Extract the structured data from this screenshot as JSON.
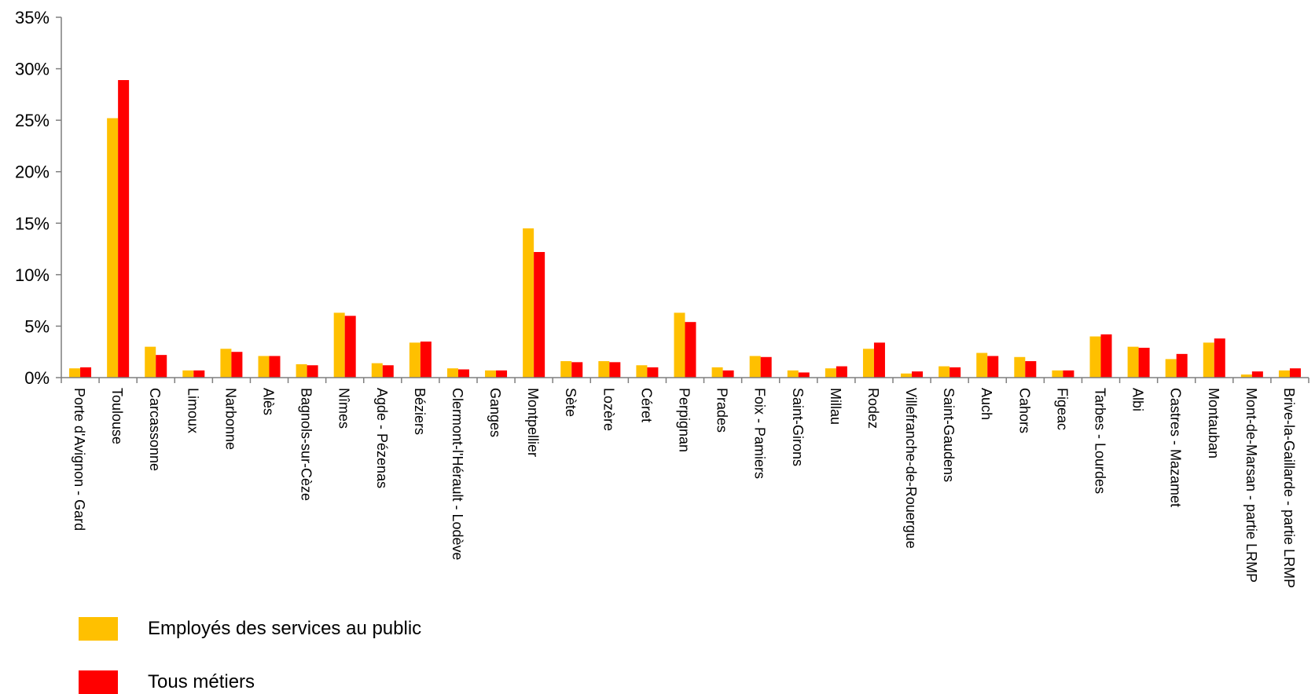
{
  "chart_data": {
    "type": "bar",
    "categories": [
      "Porte d'Avignon - Gard",
      "Toulouse",
      "Carcassonne",
      "Limoux",
      "Narbonne",
      "Alès",
      "Bagnols-sur-Cèze",
      "Nîmes",
      "Agde - Pézenas",
      "Béziers",
      "Clermont-l'Hérault - Lodève",
      "Ganges",
      "Montpellier",
      "Sète",
      "Lozère",
      "Céret",
      "Perpignan",
      "Prades",
      "Foix - Pamiers",
      "Saint-Girons",
      "Millau",
      "Rodez",
      "Villefranche-de-Rouergue",
      "Saint-Gaudens",
      "Auch",
      "Cahors",
      "Figeac",
      "Tarbes - Lourdes",
      "Albi",
      "Castres - Mazamet",
      "Montauban",
      "Mont-de-Marsan - partie LRMP",
      "Brive-la-Gaillarde - partie LRMP"
    ],
    "series": [
      {
        "name": "Employés des services au public",
        "color": "#FFC000",
        "values": [
          0.9,
          25.2,
          3.0,
          0.7,
          2.8,
          2.1,
          1.3,
          6.3,
          1.4,
          3.4,
          0.9,
          0.7,
          14.5,
          1.6,
          1.6,
          1.2,
          6.3,
          1.0,
          2.1,
          0.7,
          0.9,
          2.8,
          0.4,
          1.1,
          2.4,
          2.0,
          0.7,
          4.0,
          3.0,
          1.8,
          3.4,
          0.3,
          0.7
        ]
      },
      {
        "name": "Tous métiers",
        "color": "#FF0000",
        "values": [
          1.0,
          28.9,
          2.2,
          0.7,
          2.5,
          2.1,
          1.2,
          6.0,
          1.2,
          3.5,
          0.8,
          0.7,
          12.2,
          1.5,
          1.5,
          1.0,
          5.4,
          0.7,
          2.0,
          0.5,
          1.1,
          3.4,
          0.6,
          1.0,
          2.1,
          1.6,
          0.7,
          4.2,
          2.9,
          2.3,
          3.8,
          0.6,
          0.9
        ]
      }
    ],
    "yticks": [
      "0%",
      "5%",
      "10%",
      "15%",
      "20%",
      "25%",
      "30%",
      "35%"
    ],
    "ylim": [
      0,
      35
    ],
    "title": "",
    "xlabel": "",
    "ylabel": "",
    "legend_position": "bottom-left",
    "grid": false
  },
  "legend": {
    "items": [
      {
        "label": "Employés des services au public",
        "color": "#FFC000"
      },
      {
        "label": "Tous métiers",
        "color": "#FF0000"
      }
    ]
  }
}
